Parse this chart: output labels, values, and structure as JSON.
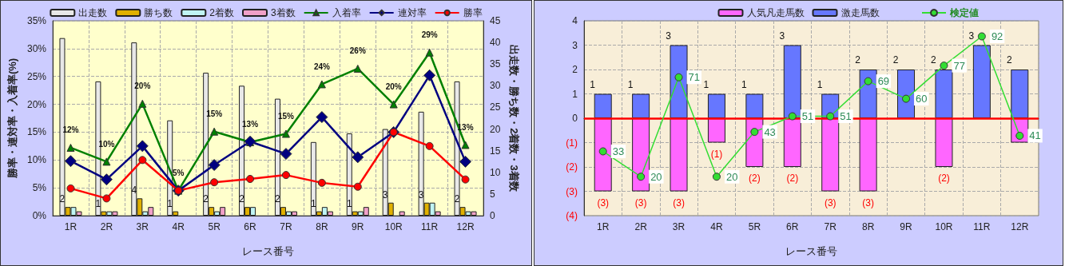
{
  "chart_data": [
    {
      "type": "bar",
      "xlabel": "レース番号",
      "ylabel": "勝率・連対率・入着率(%)",
      "y2label": "出走数・勝ち数・2着数・3着数",
      "categories": [
        "1R",
        "2R",
        "3R",
        "4R",
        "5R",
        "6R",
        "7R",
        "8R",
        "9R",
        "10R",
        "11R",
        "12R"
      ],
      "series": [
        {
          "name": "出走数",
          "type": "bar",
          "axis": "y2",
          "color": "#e8e8e8",
          "values": [
            41,
            31,
            40,
            22,
            33,
            30,
            27,
            17,
            19,
            20,
            24,
            31
          ]
        },
        {
          "name": "勝ち数",
          "type": "bar",
          "axis": "y2",
          "color": "#e0b000",
          "values": [
            2,
            1,
            4,
            1,
            2,
            2,
            2,
            1,
            1,
            3,
            3,
            2
          ],
          "value_labels": [
            "2",
            "1",
            "4",
            "1",
            "2",
            "2",
            "2",
            "1",
            "1",
            "3",
            "3",
            "2"
          ]
        },
        {
          "name": "2着数",
          "type": "bar",
          "axis": "y2",
          "color": "#c0f4f4",
          "values": [
            2,
            1,
            1,
            0,
            1,
            2,
            1,
            2,
            1,
            0,
            3,
            1
          ]
        },
        {
          "name": "3着数",
          "type": "bar",
          "axis": "y2",
          "color": "#f0a0c8",
          "values": [
            1,
            1,
            2,
            0,
            2,
            0,
            1,
            1,
            2,
            1,
            1,
            1
          ]
        },
        {
          "name": "入着率",
          "type": "line",
          "marker": "triangle",
          "color": "#008000",
          "values": [
            12.2,
            9.7,
            20.1,
            4.5,
            15.1,
            13.2,
            14.7,
            23.6,
            26.4,
            20.0,
            29.3,
            12.7
          ],
          "value_labels": [
            "12%",
            "10%",
            "20%",
            "5%",
            "15%",
            "13%",
            "15%",
            "24%",
            "26%",
            "20%",
            "29%",
            "13%"
          ]
        },
        {
          "name": "連対率",
          "type": "line",
          "marker": "diamond",
          "color": "#000080",
          "values": [
            9.8,
            6.5,
            12.5,
            4.5,
            9.1,
            13.3,
            11.1,
            17.7,
            10.5,
            15.0,
            25.2,
            9.7
          ]
        },
        {
          "name": "勝率",
          "type": "line",
          "marker": "circle",
          "color": "#ff0000",
          "values": [
            4.9,
            3.1,
            10.0,
            4.5,
            6.0,
            6.6,
            7.3,
            5.9,
            5.2,
            15.0,
            12.5,
            6.5
          ]
        }
      ],
      "ylim": [
        0,
        35
      ],
      "yticks": [
        {
          "value": 0,
          "label": "0%"
        },
        {
          "value": 5,
          "label": "5%"
        },
        {
          "value": 10,
          "label": "10%"
        },
        {
          "value": 15,
          "label": "15%"
        },
        {
          "value": 20,
          "label": "20%"
        },
        {
          "value": 25,
          "label": "25%"
        },
        {
          "value": 30,
          "label": "30%"
        },
        {
          "value": 35,
          "label": "35%"
        }
      ],
      "y2lim": [
        0,
        45
      ],
      "y2ticks": [
        0,
        5,
        10,
        15,
        20,
        25,
        30,
        35,
        40,
        45
      ],
      "grid": true,
      "legend": "top"
    },
    {
      "type": "bar",
      "xlabel": "レース番号",
      "stacked": true,
      "categories": [
        "1R",
        "2R",
        "3R",
        "4R",
        "5R",
        "6R",
        "7R",
        "8R",
        "9R",
        "10R",
        "11R",
        "12R"
      ],
      "series": [
        {
          "name": "人気凡走馬数",
          "type": "bar",
          "color": "#ff66ff",
          "values": [
            -3,
            -3,
            -3,
            -1,
            -2,
            -2,
            -3,
            -3,
            0,
            -2,
            0,
            -1
          ],
          "value_labels": [
            "(3)",
            "(3)",
            "(3)",
            "(1)",
            "(2)",
            "(2)",
            "(3)",
            "(3)",
            null,
            "(2)",
            null,
            null
          ]
        },
        {
          "name": "激走馬数",
          "type": "bar",
          "color": "#6677ff",
          "values": [
            1,
            1,
            3,
            1,
            1,
            3,
            1,
            2,
            2,
            2,
            3,
            2
          ],
          "value_labels": [
            "1",
            "1",
            "3",
            "1",
            "1",
            "3",
            "1",
            "2",
            "2",
            "2",
            "3",
            "2"
          ]
        },
        {
          "name": "検定値",
          "type": "line",
          "axis": "y2",
          "marker": "circle",
          "color": "#33dd33",
          "values": [
            33,
            20,
            71,
            20,
            43,
            51,
            51,
            69,
            60,
            77,
            92,
            41
          ],
          "value_labels": [
            "33",
            "20",
            "71",
            "20",
            "43",
            "51",
            "51",
            "69",
            "60",
            "77",
            "92",
            "41"
          ]
        }
      ],
      "ylim": [
        -4,
        4
      ],
      "yticks": [
        {
          "value": -4,
          "label": "(4)"
        },
        {
          "value": -3,
          "label": "(3)"
        },
        {
          "value": -2,
          "label": "(2)"
        },
        {
          "value": -1,
          "label": "(1)"
        },
        0,
        1,
        2,
        3,
        4
      ],
      "y2lim": [
        0,
        100
      ],
      "ref_lines": [
        {
          "axis": "y",
          "value": 0,
          "color": "#ff0000"
        }
      ],
      "grid": true,
      "legend": "top"
    }
  ]
}
